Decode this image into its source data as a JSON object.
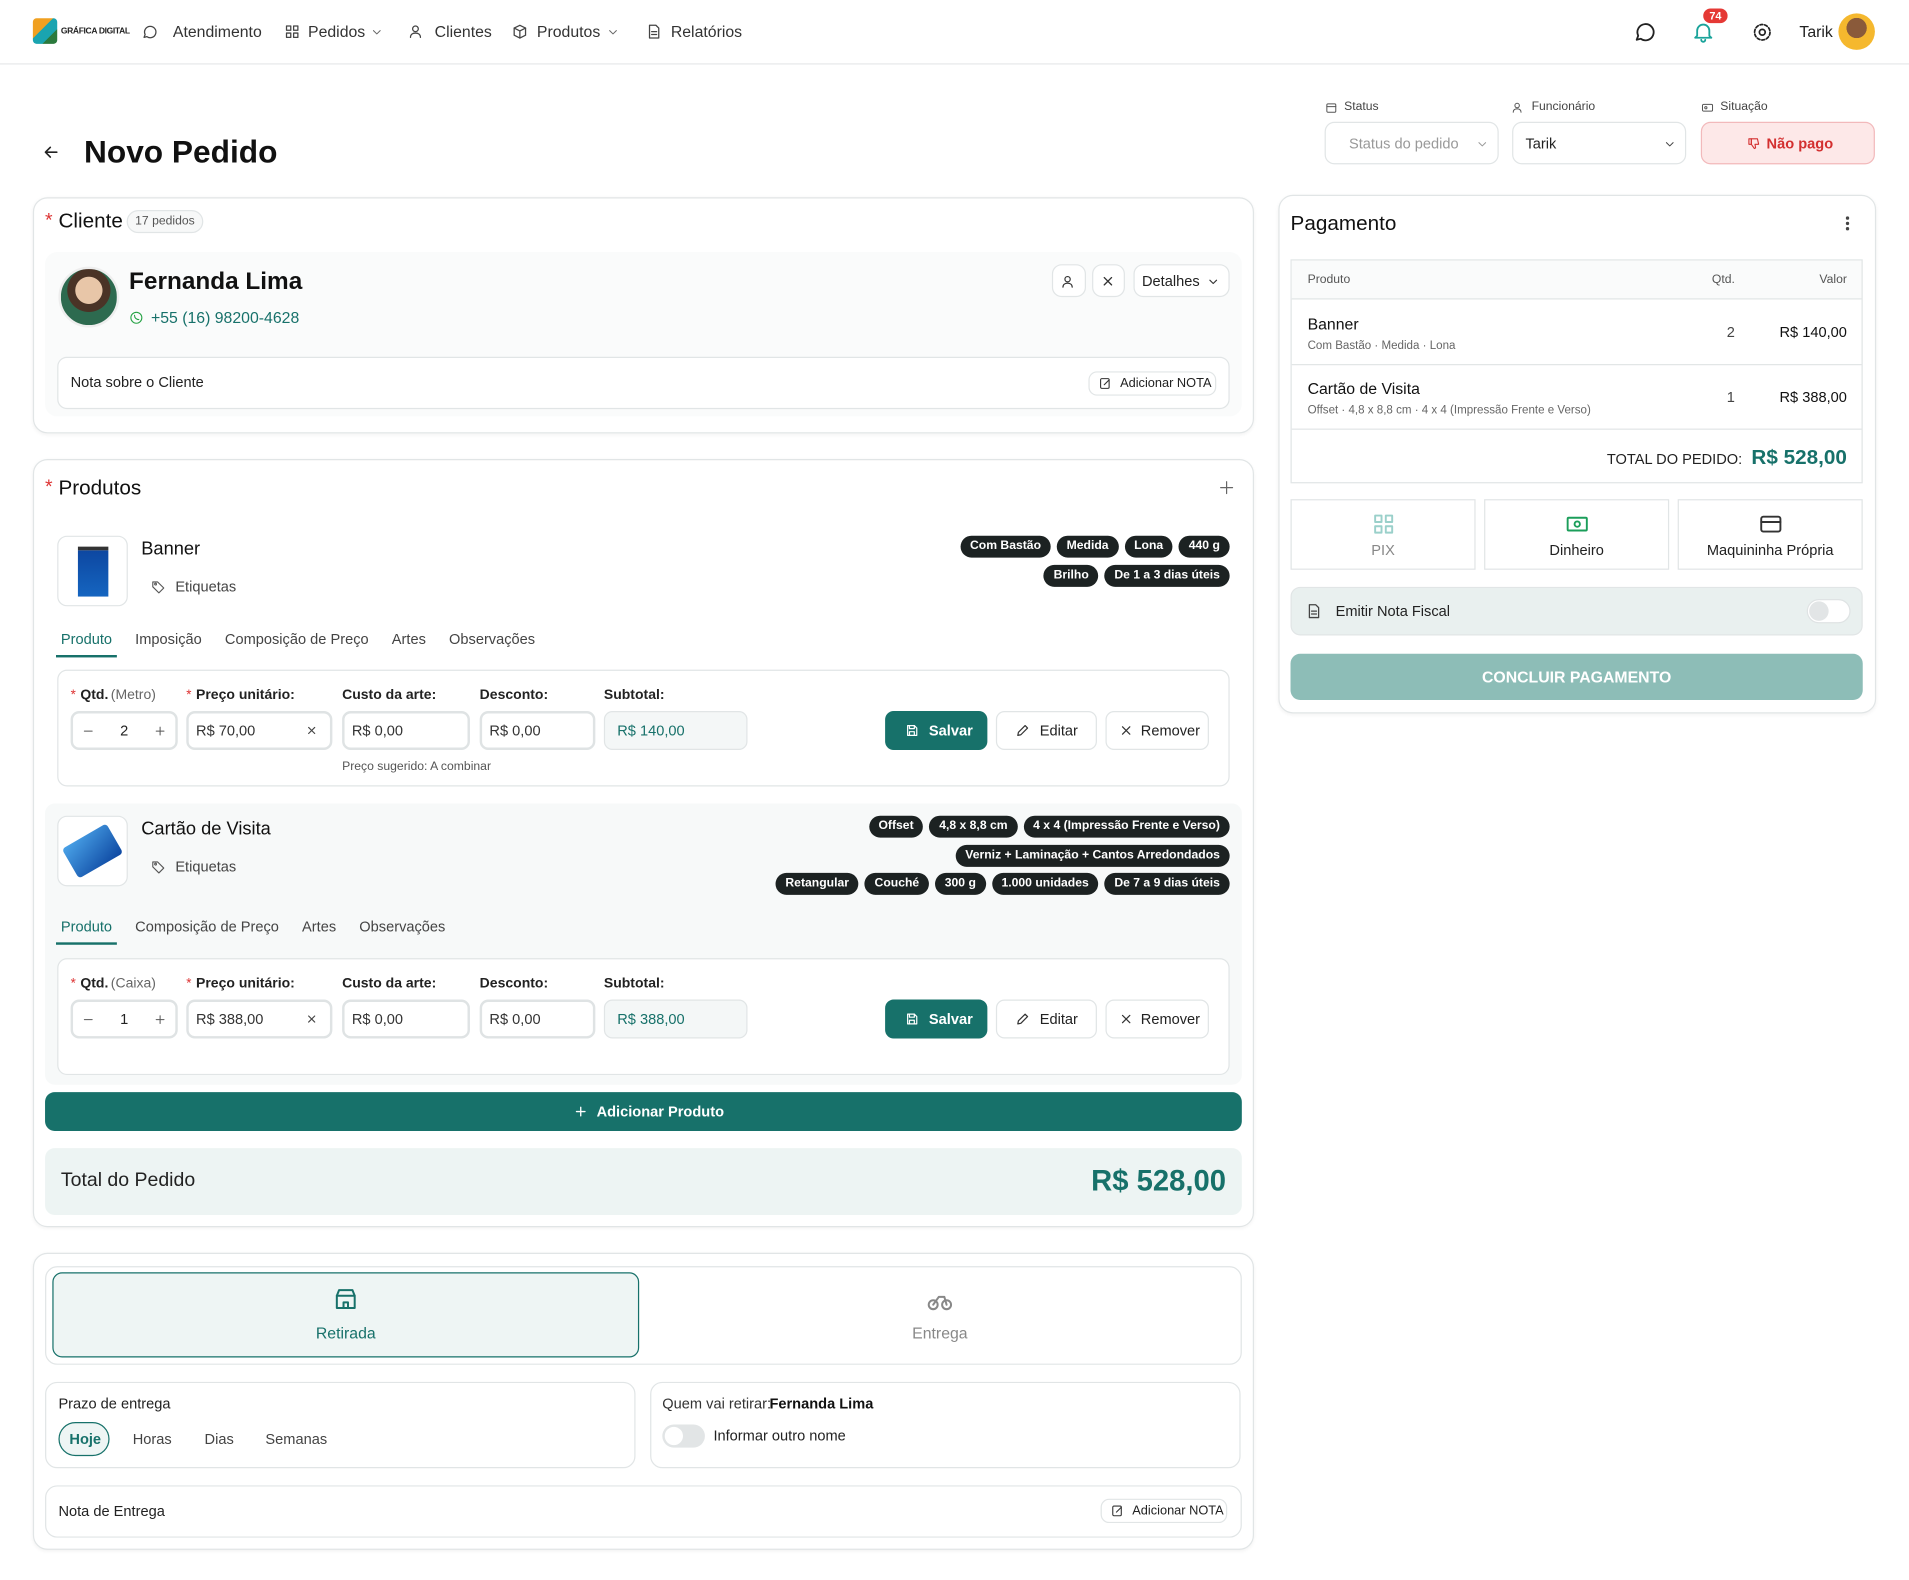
{
  "nav": {
    "logo": "GRÁFICA DIGITAL",
    "items": [
      "Atendimento",
      "Pedidos",
      "Clientes",
      "Produtos",
      "Relatórios"
    ],
    "notifications": "74",
    "user": "Tarik"
  },
  "required_mark": "*",
  "header": {
    "title": "Novo Pedido",
    "status": {
      "label": "Status",
      "placeholder": "Status do pedido"
    },
    "employee": {
      "label": "Funcionário",
      "value": "Tarik"
    },
    "situation": {
      "label": "Situação",
      "value": "Não pago"
    }
  },
  "client": {
    "title": "Cliente",
    "count": "17 pedidos",
    "name": "Fernanda Lima",
    "phone": "+55 (16) 98200-4628",
    "details": "Detalhes",
    "note_label": "Nota sobre o Cliente",
    "add_note": "Adicionar NOTA"
  },
  "products": {
    "title": "Produtos",
    "items": [
      {
        "name": "Banner",
        "tags_label": "Etiquetas",
        "chips": [
          [
            "Com Bastão",
            "Medida",
            "Lona",
            "440 g"
          ],
          [
            "Brilho",
            "De 1 a 3 dias úteis"
          ]
        ],
        "tabs": [
          "Produto",
          "Imposição",
          "Composição de Preço",
          "Artes",
          "Observações"
        ],
        "fields": [
          {
            "label": "Qtd.",
            "unit": "(Metro)",
            "value": "2"
          },
          {
            "label": "Preço unitário:",
            "value": "R$ 70,00"
          },
          {
            "label": "Custo da arte:",
            "value": "R$ 0,00"
          },
          {
            "label": "Desconto:",
            "value": "R$ 0,00"
          },
          {
            "label": "Subtotal:",
            "value": "R$ 140,00"
          }
        ],
        "hint": "Preço sugerido: A combinar",
        "actions": [
          "Salvar",
          "Editar",
          "Remover"
        ]
      },
      {
        "name": "Cartão de Visita",
        "tags_label": "Etiquetas",
        "chips": [
          [
            "Offset",
            "4,8 x 8,8 cm",
            "4 x 4 (Impressão Frente e Verso)"
          ],
          [
            "Verniz + Laminação + Cantos Arredondados"
          ],
          [
            "Retangular",
            "Couché",
            "300 g",
            "1.000 unidades",
            "De 7 a 9 dias úteis"
          ]
        ],
        "tabs": [
          "Produto",
          "Composição de Preço",
          "Artes",
          "Observações"
        ],
        "fields": [
          {
            "label": "Qtd.",
            "unit": "(Caixa)",
            "value": "1"
          },
          {
            "label": "Preço unitário:",
            "value": "R$ 388,00"
          },
          {
            "label": "Custo da arte:",
            "value": "R$ 0,00"
          },
          {
            "label": "Desconto:",
            "value": "R$ 0,00"
          },
          {
            "label": "Subtotal:",
            "value": "R$ 388,00"
          }
        ],
        "actions": [
          "Salvar",
          "Editar",
          "Remover"
        ]
      }
    ],
    "add": "Adicionar Produto",
    "total_label": "Total do Pedido",
    "total": "R$ 528,00"
  },
  "delivery": {
    "modes": [
      "Retirada",
      "Entrega"
    ],
    "deadline_label": "Prazo de entrega",
    "deadline_options": [
      "Hoje",
      "Horas",
      "Dias",
      "Semanas"
    ],
    "pickup_label": "Quem vai retirar:",
    "pickup_name": "Fernanda Lima",
    "other_name": "Informar outro nome",
    "note_label": "Nota de Entrega",
    "add_note": "Adicionar NOTA"
  },
  "payment": {
    "title": "Pagamento",
    "table": {
      "headers": [
        "Produto",
        "Qtd.",
        "Valor"
      ],
      "rows": [
        {
          "name": "Banner",
          "desc": "Com Bastão · Medida · Lona",
          "qty": "2",
          "value": "R$ 140,00"
        },
        {
          "name": "Cartão de Visita",
          "desc": "Offset · 4,8 x 8,8 cm · 4 x 4 (Impressão Frente e Verso)",
          "qty": "1",
          "value": "R$ 388,00"
        }
      ]
    },
    "total_label": "TOTAL DO PEDIDO:",
    "total": "R$ 528,00",
    "methods": [
      "PIX",
      "Dinheiro",
      "Maquininha Própria"
    ],
    "invoice": "Emitir Nota Fiscal",
    "submit": "CONCLUIR PAGAMENTO"
  }
}
